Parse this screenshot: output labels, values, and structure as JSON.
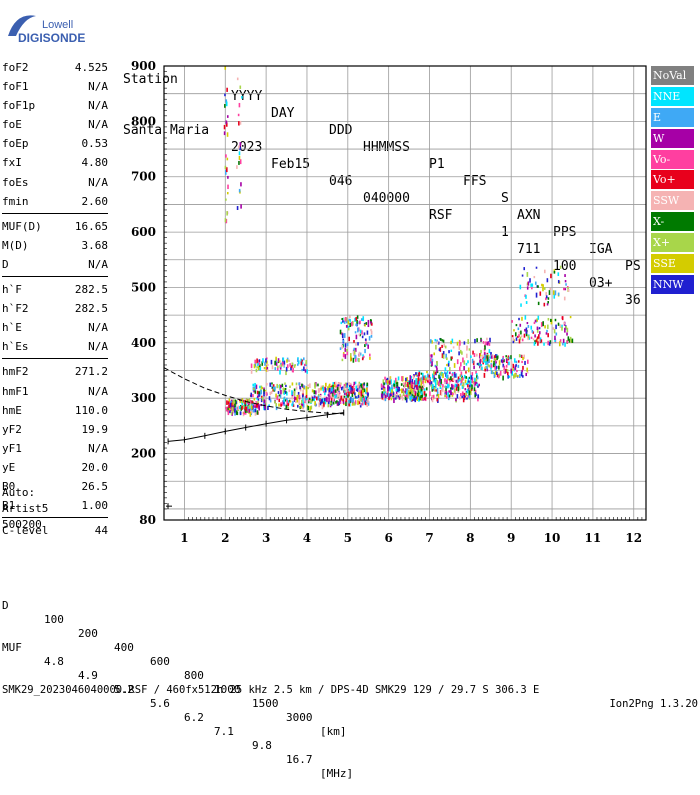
{
  "logo": {
    "line1": "Lowell",
    "line2": "DIGISONDE"
  },
  "header": {
    "labels": [
      "Station",
      "YYYY",
      "DAY",
      "DDD",
      "HHMMSS",
      "P1",
      "FFS",
      "S",
      "AXN",
      "PPS",
      "IGA",
      "PS"
    ],
    "values": [
      "Santa Maria",
      "2023",
      "Feb15",
      "046",
      "040000",
      "RSF",
      "1",
      "711",
      "100",
      "03+",
      "36"
    ]
  },
  "params": [
    [
      [
        "foF2",
        "4.525"
      ],
      [
        "foF1",
        "N/A"
      ],
      [
        "foF1p",
        "N/A"
      ],
      [
        "foE",
        "N/A"
      ],
      [
        "foEp",
        "0.53"
      ],
      [
        "fxI",
        "4.80"
      ],
      [
        "foEs",
        "N/A"
      ],
      [
        "fmin",
        "2.60"
      ]
    ],
    [
      [
        "MUF(D)",
        "16.65"
      ],
      [
        "M(D)",
        "3.68"
      ],
      [
        "D",
        "N/A"
      ]
    ],
    [
      [
        "h`F",
        "282.5"
      ],
      [
        "h`F2",
        "282.5"
      ],
      [
        "h`E",
        "N/A"
      ],
      [
        "h`Es",
        "N/A"
      ]
    ],
    [
      [
        "hmF2",
        "271.2"
      ],
      [
        "hmF1",
        "N/A"
      ],
      [
        "hmE",
        "110.0"
      ],
      [
        "yF2",
        "19.9"
      ],
      [
        "yF1",
        "N/A"
      ],
      [
        "yE",
        "20.0"
      ],
      [
        "B0",
        "26.5"
      ],
      [
        "B1",
        "1.00"
      ]
    ],
    [
      [
        "C-level",
        "44"
      ]
    ]
  ],
  "auto": {
    "line1": "Auto:",
    "line2": "Artist5",
    "line3": "500200"
  },
  "legend": [
    {
      "label": "NoVal",
      "color": "#808080",
      "text": "#ffffff"
    },
    {
      "label": "NNE",
      "color": "#00e5ff",
      "text": "#ffffff"
    },
    {
      "label": "E",
      "color": "#3fa9f5",
      "text": "#ffffff"
    },
    {
      "label": "W",
      "color": "#a600a6",
      "text": "#ffffff"
    },
    {
      "label": "Vo-",
      "color": "#ff3fa0",
      "text": "#ffffff"
    },
    {
      "label": "Vo+",
      "color": "#e8001c",
      "text": "#ffffff"
    },
    {
      "label": "SSW",
      "color": "#f5b3b3",
      "text": "#ffffff"
    },
    {
      "label": "X-",
      "color": "#007a00",
      "text": "#ffffff"
    },
    {
      "label": "X+",
      "color": "#a8d64a",
      "text": "#ffffff"
    },
    {
      "label": "SSE",
      "color": "#d4cc00",
      "text": "#ffffff"
    },
    {
      "label": "NNW",
      "color": "#2020d0",
      "text": "#ffffff"
    }
  ],
  "footer": {
    "d_label": "D",
    "d_values": [
      "100",
      "200",
      "400",
      "600",
      "800",
      "1000",
      "1500",
      "3000",
      "[km]"
    ],
    "muf_label": "MUF",
    "muf_values": [
      "4.8",
      "4.9",
      "5.2",
      "5.6",
      "6.2",
      "7.1",
      "9.8",
      "16.7",
      "[MHz]"
    ],
    "file_line": "SMK29_2023046040000.RSF / 460fx512h 25 kHz 2.5 km / DPS-4D SMK29 129 / 29.7 S 306.3 E",
    "software": "Ion2Png 1.3.20"
  },
  "chart_data": {
    "type": "scatter",
    "xlim": [
      0.5,
      12.3
    ],
    "ylim": [
      80,
      900
    ],
    "x_ticks": [
      1,
      2,
      3,
      4,
      5,
      6,
      7,
      8,
      9,
      10,
      11,
      12
    ],
    "y_ticks": [
      80,
      200,
      300,
      400,
      500,
      600,
      700,
      800,
      900
    ],
    "grid": true,
    "trace_profile": [
      [
        0.6,
        222
      ],
      [
        1.0,
        225
      ],
      [
        1.5,
        232
      ],
      [
        2.0,
        240
      ],
      [
        2.5,
        247
      ],
      [
        3.0,
        254
      ],
      [
        3.5,
        260
      ],
      [
        4.0,
        265
      ],
      [
        4.5,
        270
      ],
      [
        4.9,
        274
      ]
    ],
    "virtual_height_curve": [
      [
        0.5,
        355
      ],
      [
        1.0,
        335
      ],
      [
        1.5,
        318
      ],
      [
        2.0,
        305
      ],
      [
        2.5,
        294
      ],
      [
        3.0,
        286
      ],
      [
        3.5,
        280
      ],
      [
        4.0,
        276
      ],
      [
        4.5,
        273
      ],
      [
        4.9,
        272
      ]
    ],
    "echo_clusters": [
      {
        "x": [
          2.0,
          2.8
        ],
        "y": [
          275,
          300
        ],
        "n": 160
      },
      {
        "x": [
          2.6,
          4.5
        ],
        "y": [
          285,
          330
        ],
        "n": 260
      },
      {
        "x": [
          2.6,
          4.0
        ],
        "y": [
          350,
          375
        ],
        "n": 90
      },
      {
        "x": [
          4.5,
          5.5
        ],
        "y": [
          290,
          330
        ],
        "n": 240
      },
      {
        "x": [
          4.8,
          5.6
        ],
        "y": [
          370,
          450
        ],
        "n": 110
      },
      {
        "x": [
          5.8,
          6.8
        ],
        "y": [
          300,
          340
        ],
        "n": 200
      },
      {
        "x": [
          6.5,
          8.2
        ],
        "y": [
          300,
          350
        ],
        "n": 330
      },
      {
        "x": [
          7.0,
          8.5
        ],
        "y": [
          355,
          410
        ],
        "n": 120
      },
      {
        "x": [
          8.2,
          9.4
        ],
        "y": [
          340,
          380
        ],
        "n": 130
      },
      {
        "x": [
          9.0,
          10.5
        ],
        "y": [
          400,
          450
        ],
        "n": 110
      },
      {
        "x": [
          9.2,
          10.4
        ],
        "y": [
          470,
          540
        ],
        "n": 60
      },
      {
        "x": [
          1.95,
          2.05
        ],
        "y": [
          620,
          900
        ],
        "n": 25
      },
      {
        "x": [
          2.25,
          2.4
        ],
        "y": [
          640,
          890
        ],
        "n": 20
      }
    ]
  }
}
